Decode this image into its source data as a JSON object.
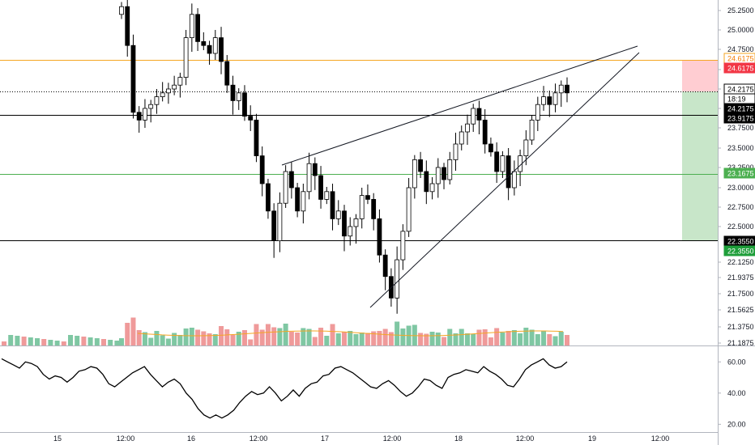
{
  "chart_data": [
    {
      "type": "candlestick",
      "symbol": "",
      "ylim": [
        21.1875,
        25.33
      ],
      "price_ticks": [
        "25.2500",
        "25.0000",
        "24.7500",
        "24.5000",
        "24.2500",
        "24.0000",
        "23.7500",
        "23.5000",
        "23.2500",
        "23.0000",
        "22.7500",
        "22.5000",
        "22.1250",
        "21.9375",
        "21.7500",
        "21.5625",
        "21.3750",
        "21.1875"
      ],
      "price_tick_values": [
        25.25,
        25.0,
        24.75,
        24.5,
        24.25,
        24.0,
        23.75,
        23.5,
        23.25,
        23.0,
        22.75,
        22.5,
        22.125,
        21.9375,
        21.75,
        21.5625,
        21.375,
        21.1875
      ],
      "x_ticks": [
        "15",
        "12:00",
        "16",
        "12:00",
        "17",
        "12:00",
        "18",
        "12:00",
        "19",
        "12:00"
      ],
      "x_tick_bar_index": [
        9,
        19,
        29,
        39,
        49,
        59,
        69,
        79,
        89,
        99
      ],
      "candles": [
        {
          "o": 25.1,
          "h": 25.35,
          "l": 25.0,
          "c": 25.3
        },
        {
          "o": 25.2,
          "h": 25.35,
          "l": 24.8,
          "c": 24.8
        },
        {
          "o": 24.8,
          "h": 24.95,
          "l": 23.75,
          "c": 23.95
        },
        {
          "o": 23.95,
          "h": 24.1,
          "l": 23.8,
          "c": 24.05
        },
        {
          "o": 24.05,
          "h": 24.4,
          "l": 23.9,
          "c": 24.2
        },
        {
          "o": 24.2,
          "h": 24.3,
          "l": 23.95,
          "c": 24.1
        },
        {
          "o": 24.1,
          "h": 24.25,
          "l": 23.95,
          "c": 24.15
        },
        {
          "o": 24.15,
          "h": 24.3,
          "l": 24.05,
          "c": 24.2
        },
        {
          "o": 24.2,
          "h": 24.35,
          "l": 24.1,
          "c": 24.25
        },
        {
          "o": 24.25,
          "h": 24.35,
          "l": 24.15,
          "c": 24.3
        },
        {
          "o": 24.3,
          "h": 24.45,
          "l": 24.1,
          "c": 24.4
        },
        {
          "o": 24.4,
          "h": 24.55,
          "l": 23.75,
          "c": 23.9
        },
        {
          "o": 23.9,
          "h": 24.2,
          "l": 23.4,
          "c": 23.85
        },
        {
          "o": 23.85,
          "h": 24.15,
          "l": 23.75,
          "c": 24.0
        },
        {
          "o": 24.0,
          "h": 24.15,
          "l": 23.8,
          "c": 23.95
        },
        {
          "o": 23.95,
          "h": 24.1,
          "l": 23.85,
          "c": 24.05
        },
        {
          "o": 24.05,
          "h": 24.15,
          "l": 23.9,
          "c": 24.0
        },
        {
          "o": 24.0,
          "h": 24.15,
          "l": 23.85,
          "c": 23.95
        },
        {
          "o": 23.95,
          "h": 24.15,
          "l": 23.8,
          "c": 24.05
        },
        {
          "o": 24.05,
          "h": 24.2,
          "l": 23.85,
          "c": 24.15
        },
        {
          "o": 24.15,
          "h": 24.3,
          "l": 24.0,
          "c": 24.1
        },
        {
          "o": 24.1,
          "h": 24.25,
          "l": 23.85,
          "c": 24.2
        },
        {
          "o": 24.2,
          "h": 24.35,
          "l": 24.05,
          "c": 24.3
        },
        {
          "o": 24.3,
          "h": 24.45,
          "l": 24.1,
          "c": 24.2
        },
        {
          "o": 24.2,
          "h": 24.35,
          "l": 24.05,
          "c": 24.25
        },
        {
          "o": 24.25,
          "h": 24.95,
          "l": 24.2,
          "c": 24.9
        },
        {
          "o": 24.9,
          "h": 25.25,
          "l": 24.75,
          "c": 25.2
        },
        {
          "o": 25.2,
          "h": 25.25,
          "l": 24.8,
          "c": 24.85
        },
        {
          "o": 24.85,
          "h": 24.95,
          "l": 24.6,
          "c": 24.7
        },
        {
          "o": 24.7,
          "h": 24.85,
          "l": 24.6,
          "c": 24.8
        }
      ],
      "series": [
        {
          "name": "",
          "kind": "horizontal_line",
          "color": "#f5a623",
          "y": 24.6175,
          "tag": "24.6175"
        },
        {
          "name": "",
          "kind": "horizontal_line",
          "color": "#000000",
          "y": 24.2175,
          "tag": "24.2175"
        },
        {
          "name": "",
          "kind": "horizontal_line",
          "color": "#000000",
          "y": 23.9175,
          "tag": "23.9175"
        },
        {
          "name": "",
          "kind": "horizontal_line",
          "color": "#4caf50",
          "y": 23.1675,
          "tag": "23.1675"
        },
        {
          "name": "",
          "kind": "horizontal_line",
          "color": "#000000",
          "y": 22.355,
          "tag": "22.3550"
        }
      ],
      "price_tags": [
        {
          "label": "24.6175",
          "bg": "#ffffff",
          "fg": "#f57c00",
          "border": "#f5a623",
          "value": 24.6175
        },
        {
          "label": "24.6175",
          "bg": "#f23645",
          "fg": "#ffffff",
          "value": 24.6175
        },
        {
          "label": "24.2175",
          "bg": "#ffffff",
          "fg": "#000000",
          "border": "#000000",
          "value": 24.2175
        },
        {
          "label": "18:19",
          "bg": "#ffffff",
          "fg": "#000000",
          "border": "#000000",
          "value": 24.07
        },
        {
          "label": "24.2175",
          "bg": "#000000",
          "fg": "#ffffff",
          "value": 24.0
        },
        {
          "label": "23.9175",
          "bg": "#000000",
          "fg": "#ffffff",
          "value": 23.9175
        },
        {
          "label": "23.1675",
          "bg": "#4caf50",
          "fg": "#ffffff",
          "value": 23.1675
        },
        {
          "label": "22.3550",
          "bg": "#000000",
          "fg": "#ffffff",
          "value": 22.355
        },
        {
          "label": "22.3550",
          "bg": "#1e9e3a",
          "fg": "#ffffff",
          "value": 22.2
        }
      ],
      "risk_reward": {
        "entry": 24.2175,
        "stop": 24.6175,
        "target": 22.355,
        "stop_color": "#ffcdd2",
        "target_color": "#c8e6c9"
      },
      "trendlines": [
        {
          "from": [
            46,
            23.3
          ],
          "to": [
            95,
            24.8
          ]
        },
        {
          "from": [
            56,
            21.6
          ],
          "to": [
            95,
            24.7
          ]
        }
      ],
      "volume_colors": {
        "up": "#7fc7a3",
        "down": "#ef9a9a"
      },
      "volume_ma_color": "#f5a623"
    },
    {
      "type": "line",
      "name": "",
      "ylim": [
        15,
        70
      ],
      "y_ticks": [
        "60.00",
        "40.00",
        "20.00"
      ],
      "y_tick_values": [
        60,
        40,
        20
      ],
      "values": [
        62,
        60,
        58,
        56,
        60,
        59,
        57,
        52,
        49,
        51,
        50,
        47,
        50,
        54,
        55,
        57,
        56,
        52,
        46,
        44,
        47,
        50,
        53,
        55,
        57,
        52,
        48,
        44,
        47,
        49,
        46,
        40,
        36,
        30,
        26,
        24,
        26,
        24,
        26,
        29,
        34,
        38,
        41,
        39,
        40,
        44,
        40,
        35,
        38,
        42,
        38,
        43,
        46,
        47,
        51,
        52,
        56,
        57,
        55,
        53,
        50,
        47,
        44,
        43,
        46,
        48,
        45,
        41,
        38,
        40,
        44,
        49,
        48,
        45,
        43,
        50,
        52,
        53,
        55,
        54,
        53,
        57,
        54,
        52,
        49,
        45,
        44,
        49,
        55,
        58,
        60,
        62,
        58,
        56,
        57,
        60
      ]
    }
  ]
}
